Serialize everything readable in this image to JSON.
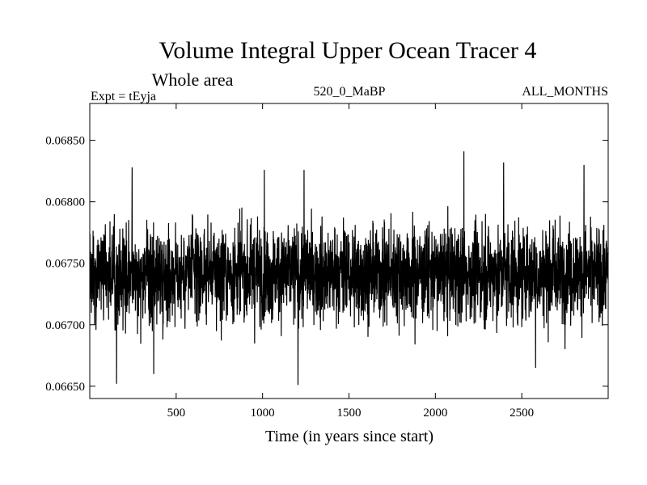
{
  "chart_data": {
    "type": "line",
    "title": "Volume Integral Upper Ocean Tracer 4",
    "subtitle": "Whole area",
    "experiment_label": "Expt = tEyja",
    "run_label": "520_0_MaBP",
    "months_label": "ALL_MONTHS",
    "xlabel": "Time (in years since start)",
    "ylabel": "",
    "xlim": [
      0,
      3000
    ],
    "ylim": [
      0.0664,
      0.0688
    ],
    "xticks": [
      500,
      1000,
      1500,
      2000,
      2500
    ],
    "xtick_labels": [
      "500",
      "1000",
      "1500",
      "2000",
      "2500"
    ],
    "yticks": [
      0.0665,
      0.067,
      0.0675,
      0.068,
      0.0685
    ],
    "ytick_labels": [
      "0.06650",
      "0.06700",
      "0.06750",
      "0.06800",
      "0.06850"
    ],
    "series": [
      {
        "name": "Tracer 4 volume integral",
        "color": "#000000",
        "x_start": 1,
        "x_step": 1,
        "n_points": 3000,
        "mean": 0.06742,
        "typical_range": [
          0.0669,
          0.0679
        ],
        "extremes": [
          {
            "x": 155,
            "y": 0.06652
          },
          {
            "x": 245,
            "y": 0.06828
          },
          {
            "x": 370,
            "y": 0.0666
          },
          {
            "x": 1010,
            "y": 0.06826
          },
          {
            "x": 1205,
            "y": 0.06651
          },
          {
            "x": 1240,
            "y": 0.06826
          },
          {
            "x": 2165,
            "y": 0.06841
          },
          {
            "x": 2395,
            "y": 0.06832
          },
          {
            "x": 2580,
            "y": 0.06665
          },
          {
            "x": 2860,
            "y": 0.0683
          }
        ]
      }
    ]
  }
}
